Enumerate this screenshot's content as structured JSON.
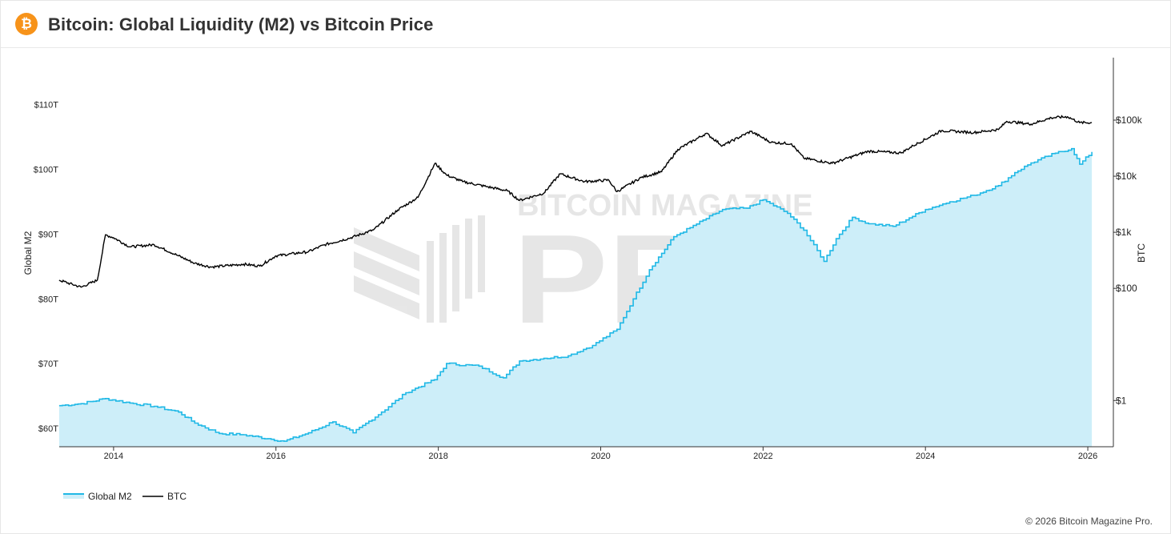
{
  "header": {
    "title": "Bitcoin: Global Liquidity (M2) vs Bitcoin Price",
    "logo_icon": "bitcoin-logo-icon",
    "logo_glyph": "₿"
  },
  "watermark": {
    "line1": "BITCOIN MAGAZINE",
    "line2": "PRO"
  },
  "footer": {
    "copyright": "© 2026 Bitcoin Magazine Pro."
  },
  "colors": {
    "m2_line": "#1fb8e6",
    "m2_fill": "#cdeef9",
    "btc_line": "#000000",
    "brand": "#f7931a"
  },
  "chart_data": {
    "type": "area",
    "title": "Bitcoin: Global Liquidity (M2) vs Bitcoin Price",
    "x_ticks": [
      "2014",
      "2016",
      "2018",
      "2020",
      "2022",
      "2024",
      "2026"
    ],
    "xlim": [
      "2013-04-30",
      "2026-01-15"
    ],
    "y_left": {
      "label": "Global M2",
      "ticks": [
        "$60T",
        "$70T",
        "$80T",
        "$90T",
        "$100T",
        "$110T"
      ],
      "tick_values": [
        60,
        70,
        80,
        90,
        100,
        110
      ],
      "range": [
        57.15,
        117.26
      ]
    },
    "y_right": {
      "label": "BTC",
      "scale": "log",
      "ticks": [
        "$1",
        "$100",
        "$1k",
        "$10k",
        "$100k"
      ],
      "tick_values": [
        1,
        100,
        1000,
        10000,
        100000
      ],
      "range": [
        0.15,
        1300000
      ]
    },
    "legend": {
      "position": "bottom-left",
      "items": [
        "Global M2",
        "BTC"
      ]
    },
    "series": [
      {
        "name": "Global M2",
        "axis": "left",
        "x": [
          2013.33,
          2013.6,
          2013.9,
          2014.2,
          2014.5,
          2014.8,
          2015.0,
          2015.3,
          2015.6,
          2015.9,
          2016.1,
          2016.4,
          2016.7,
          2016.95,
          2017.3,
          2017.6,
          2017.95,
          2018.1,
          2018.5,
          2018.8,
          2019.0,
          2019.3,
          2019.6,
          2019.9,
          2020.2,
          2020.4,
          2020.6,
          2020.9,
          2021.1,
          2021.5,
          2021.8,
          2022.0,
          2022.3,
          2022.5,
          2022.75,
          2022.9,
          2023.1,
          2023.3,
          2023.6,
          2023.8,
          2024.0,
          2024.3,
          2024.6,
          2024.9,
          2025.1,
          2025.3,
          2025.6,
          2025.8,
          2025.9,
          2026.05
        ],
        "values": [
          63.5,
          63.8,
          64.6,
          63.9,
          63.4,
          62.5,
          60.8,
          59.2,
          59.0,
          58.4,
          58.0,
          59.3,
          61.0,
          59.3,
          62.5,
          65.5,
          67.5,
          70.0,
          69.6,
          67.8,
          70.4,
          70.8,
          71.2,
          72.8,
          75.3,
          80.0,
          84.5,
          89.6,
          91.0,
          93.8,
          94.0,
          95.3,
          93.2,
          90.6,
          85.8,
          89.3,
          92.6,
          91.6,
          91.2,
          92.5,
          93.8,
          95.0,
          96.0,
          97.5,
          99.5,
          101.0,
          102.5,
          103.2,
          100.8,
          102.7
        ]
      },
      {
        "name": "BTC",
        "axis": "right",
        "x": [
          2013.33,
          2013.6,
          2013.8,
          2013.9,
          2014.0,
          2014.2,
          2014.5,
          2014.8,
          2015.0,
          2015.2,
          2015.6,
          2015.8,
          2016.0,
          2016.4,
          2016.6,
          2016.9,
          2017.2,
          2017.5,
          2017.75,
          2017.96,
          2018.1,
          2018.3,
          2018.6,
          2018.85,
          2019.0,
          2019.3,
          2019.5,
          2019.8,
          2020.1,
          2020.2,
          2020.5,
          2020.75,
          2020.95,
          2021.3,
          2021.5,
          2021.85,
          2022.1,
          2022.35,
          2022.5,
          2022.85,
          2023.0,
          2023.3,
          2023.7,
          2023.85,
          2024.2,
          2024.6,
          2024.9,
          2025.0,
          2025.3,
          2025.55,
          2025.75,
          2025.9,
          2026.05
        ],
        "values": [
          140,
          105,
          140,
          900,
          800,
          550,
          600,
          380,
          280,
          240,
          270,
          250,
          380,
          450,
          600,
          780,
          1100,
          2500,
          4200,
          17000,
          10500,
          8000,
          6500,
          5500,
          3700,
          5000,
          11000,
          8000,
          8500,
          5300,
          9500,
          12000,
          30000,
          58000,
          35000,
          63000,
          40000,
          38000,
          21000,
          17000,
          20000,
          28000,
          26000,
          35000,
          65000,
          60000,
          68000,
          95000,
          85000,
          110000,
          115000,
          90000,
          90000
        ]
      }
    ]
  }
}
